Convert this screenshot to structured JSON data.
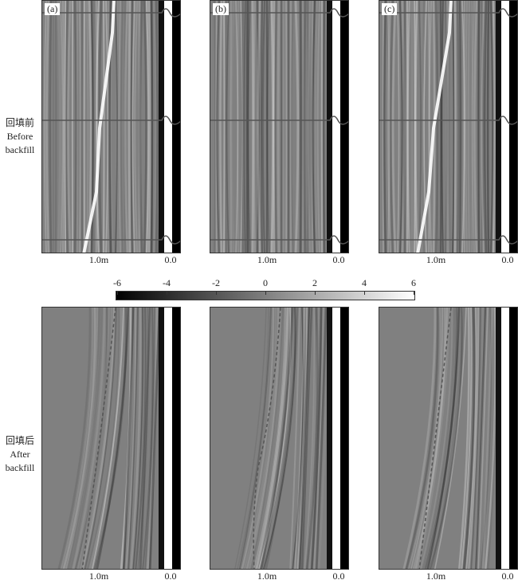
{
  "rows": [
    {
      "label_cn": "回填前",
      "label_en1": "Before",
      "label_en2": "backfill",
      "type": "before"
    },
    {
      "label_cn": "回填后",
      "label_en1": "After",
      "label_en2": "backfill",
      "type": "after"
    }
  ],
  "panels": [
    "(a)",
    "(b)",
    "(c)"
  ],
  "x_ticks": [
    "1.0m",
    "0.0"
  ],
  "colorbar": {
    "ticks": [
      "-6",
      "-4",
      "-2",
      "0",
      "2",
      "4",
      "6"
    ],
    "range": [
      -6,
      6
    ],
    "colormap": "gray (black to white)"
  },
  "colors": {
    "background_gray": "#808080",
    "trace_line": "#555555"
  }
}
